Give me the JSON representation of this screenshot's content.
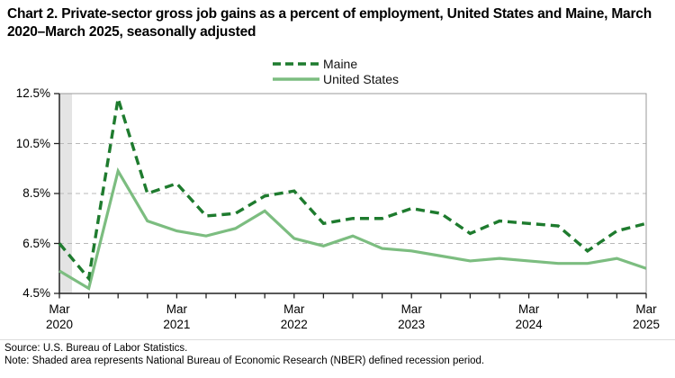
{
  "title": "Chart 2. Private-sector gross job gains as a percent of employment, United States and Maine, March 2020–March 2025, seasonally adjusted",
  "legend": [
    {
      "label": "Maine",
      "style": "dashed",
      "color_key": "maine"
    },
    {
      "label": "United States",
      "style": "solid",
      "color_key": "us"
    }
  ],
  "colors": {
    "maine": "#1e7b2e",
    "us": "#7cbd80",
    "grid": "#b8b8b8",
    "axis": "#222222",
    "border": "#999999",
    "recession": "#e4e4e4"
  },
  "footer": {
    "source": "Source: U.S. Bureau of Labor Statistics.",
    "note": "Note: Shaded area represents National Bureau of Economic Research (NBER) defined recession period."
  },
  "chart_data": {
    "type": "line",
    "title": "Private-sector gross job gains as a percent of employment, seasonally adjusted",
    "x": [
      "Mar 2020",
      "Jun 2020",
      "Sep 2020",
      "Dec 2020",
      "Mar 2021",
      "Jun 2021",
      "Sep 2021",
      "Dec 2021",
      "Mar 2022",
      "Jun 2022",
      "Sep 2022",
      "Dec 2022",
      "Mar 2023",
      "Jun 2023",
      "Sep 2023",
      "Dec 2023",
      "Mar 2024",
      "Jun 2024",
      "Sep 2024",
      "Dec 2024",
      "Mar 2025"
    ],
    "series": [
      {
        "name": "Maine",
        "dashed": true,
        "color_key": "maine",
        "values": [
          6.5,
          5.1,
          12.3,
          8.5,
          8.9,
          7.6,
          7.7,
          8.4,
          8.6,
          7.3,
          7.5,
          7.5,
          7.9,
          7.7,
          6.9,
          7.4,
          7.3,
          7.2,
          6.2,
          7.0,
          7.3
        ]
      },
      {
        "name": "United States",
        "dashed": false,
        "color_key": "us",
        "values": [
          5.4,
          4.7,
          9.4,
          7.4,
          7.0,
          6.8,
          7.1,
          7.8,
          6.7,
          6.4,
          6.8,
          6.3,
          6.2,
          6.0,
          5.8,
          5.9,
          5.8,
          5.7,
          5.7,
          5.9,
          5.5
        ]
      }
    ],
    "ylim": [
      4.5,
      12.5
    ],
    "y_ticks": [
      4.5,
      6.5,
      8.5,
      10.5,
      12.5
    ],
    "y_tick_labels": [
      "4.5%",
      "6.5%",
      "8.5%",
      "10.5%",
      "12.5%"
    ],
    "gridline_values": [
      6.5,
      8.5,
      10.5
    ],
    "x_tick_labels": [
      {
        "index": 0,
        "month": "Mar",
        "year": "2020"
      },
      {
        "index": 4,
        "month": "Mar",
        "year": "2021"
      },
      {
        "index": 8,
        "month": "Mar",
        "year": "2022"
      },
      {
        "index": 12,
        "month": "Mar",
        "year": "2023"
      },
      {
        "index": 16,
        "month": "Mar",
        "year": "2024"
      },
      {
        "index": 20,
        "month": "Mar",
        "year": "2025"
      }
    ],
    "recession_band": {
      "start_index": 0,
      "end_index": 0.43
    },
    "grid": true,
    "legend_position": "top-center"
  }
}
